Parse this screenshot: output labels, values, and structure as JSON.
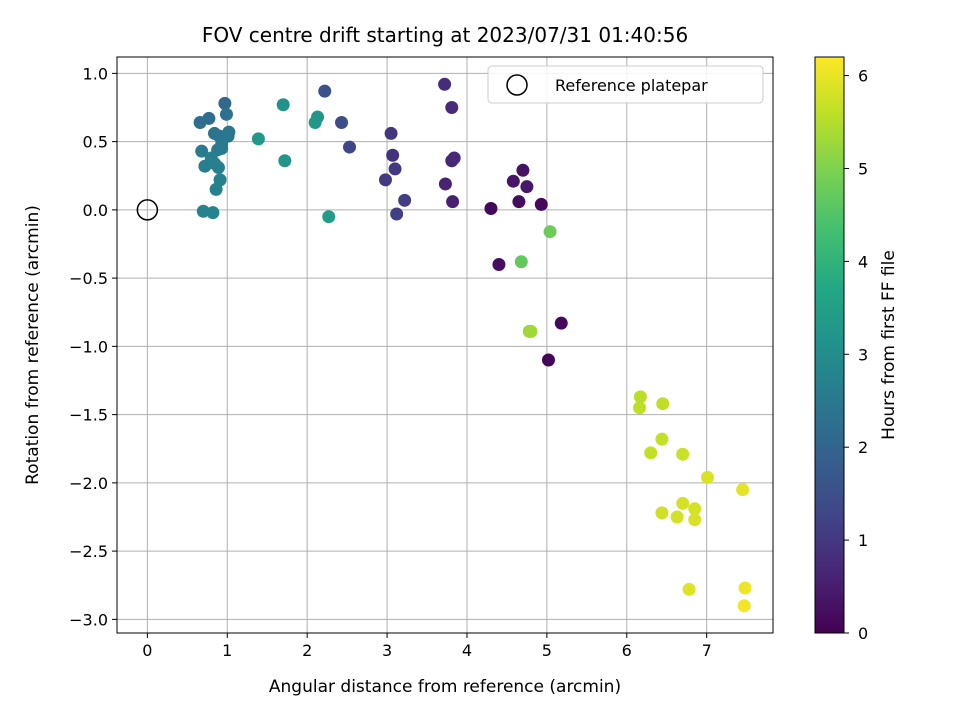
{
  "chart_data": {
    "type": "scatter",
    "title": "FOV centre drift starting at 2023/07/31 01:40:56",
    "xlabel": "Angular distance from reference (arcmin)",
    "ylabel": "Rotation from reference (arcmin)",
    "xlim": [
      -0.38,
      7.83
    ],
    "ylim": [
      -3.1,
      1.12
    ],
    "x_ticks": [
      0,
      1,
      2,
      3,
      4,
      5,
      6,
      7
    ],
    "y_ticks": [
      1.0,
      0.5,
      0.0,
      -0.5,
      -1.0,
      -1.5,
      -2.0,
      -2.5,
      -3.0
    ],
    "x_tick_labels": [
      "0",
      "1",
      "2",
      "3",
      "4",
      "5",
      "6",
      "7"
    ],
    "y_tick_labels": [
      "1.0",
      "0.5",
      "0.0",
      "−0.5",
      "−1.0",
      "−1.5",
      "−2.0",
      "−2.5",
      "−3.0"
    ],
    "grid": true,
    "legend": {
      "placement": "top-right",
      "entries": [
        "Reference platepar"
      ]
    },
    "reference_point": {
      "x": 0.0,
      "y": 0.0,
      "marker": "open-circle"
    },
    "colorbar": {
      "label": "Hours from first FF file",
      "colormap": "viridis",
      "range": [
        0,
        6.2
      ],
      "ticks": [
        0,
        1,
        2,
        3,
        4,
        5,
        6
      ],
      "tick_labels": [
        "0",
        "1",
        "2",
        "3",
        "4",
        "5",
        "6"
      ]
    },
    "points": [
      {
        "x": 4.3,
        "y": 0.01,
        "c": 0.1
      },
      {
        "x": 5.02,
        "y": -1.1,
        "c": 0.05
      },
      {
        "x": 5.18,
        "y": -0.83,
        "c": 0.15
      },
      {
        "x": 4.4,
        "y": -0.4,
        "c": 0.25
      },
      {
        "x": 4.65,
        "y": 0.06,
        "c": 0.2
      },
      {
        "x": 4.7,
        "y": 0.29,
        "c": 0.3
      },
      {
        "x": 4.58,
        "y": 0.21,
        "c": 0.35
      },
      {
        "x": 4.75,
        "y": 0.17,
        "c": 0.4
      },
      {
        "x": 4.93,
        "y": 0.04,
        "c": 0.12
      },
      {
        "x": 3.82,
        "y": 0.06,
        "c": 0.55
      },
      {
        "x": 3.73,
        "y": 0.19,
        "c": 0.6
      },
      {
        "x": 3.81,
        "y": 0.36,
        "c": 0.65
      },
      {
        "x": 3.84,
        "y": 0.38,
        "c": 0.7
      },
      {
        "x": 3.81,
        "y": 0.75,
        "c": 0.75
      },
      {
        "x": 3.72,
        "y": 0.92,
        "c": 0.8
      },
      {
        "x": 3.07,
        "y": 0.4,
        "c": 0.9
      },
      {
        "x": 3.05,
        "y": 0.56,
        "c": 0.95
      },
      {
        "x": 3.1,
        "y": 0.3,
        "c": 1.0
      },
      {
        "x": 2.98,
        "y": 0.22,
        "c": 1.05
      },
      {
        "x": 3.22,
        "y": 0.07,
        "c": 1.1
      },
      {
        "x": 3.12,
        "y": -0.03,
        "c": 1.15
      },
      {
        "x": 2.53,
        "y": 0.46,
        "c": 1.3
      },
      {
        "x": 2.43,
        "y": 0.64,
        "c": 1.45
      },
      {
        "x": 2.22,
        "y": 0.87,
        "c": 1.6
      },
      {
        "x": 0.97,
        "y": 0.78,
        "c": 2.1
      },
      {
        "x": 0.77,
        "y": 0.67,
        "c": 2.2
      },
      {
        "x": 0.66,
        "y": 0.64,
        "c": 2.25
      },
      {
        "x": 0.99,
        "y": 0.7,
        "c": 2.3
      },
      {
        "x": 0.84,
        "y": 0.56,
        "c": 2.35
      },
      {
        "x": 0.9,
        "y": 0.54,
        "c": 2.4
      },
      {
        "x": 1.01,
        "y": 0.54,
        "c": 2.4
      },
      {
        "x": 1.02,
        "y": 0.57,
        "c": 2.45
      },
      {
        "x": 0.93,
        "y": 0.48,
        "c": 2.5
      },
      {
        "x": 0.88,
        "y": 0.44,
        "c": 2.5
      },
      {
        "x": 0.93,
        "y": 0.45,
        "c": 2.55
      },
      {
        "x": 0.68,
        "y": 0.43,
        "c": 2.55
      },
      {
        "x": 0.8,
        "y": 0.38,
        "c": 2.6
      },
      {
        "x": 0.72,
        "y": 0.32,
        "c": 2.6
      },
      {
        "x": 0.84,
        "y": 0.34,
        "c": 2.65
      },
      {
        "x": 0.89,
        "y": 0.31,
        "c": 2.65
      },
      {
        "x": 0.91,
        "y": 0.22,
        "c": 2.7
      },
      {
        "x": 0.86,
        "y": 0.15,
        "c": 2.7
      },
      {
        "x": 0.7,
        "y": -0.01,
        "c": 2.75
      },
      {
        "x": 0.82,
        "y": -0.02,
        "c": 2.75
      },
      {
        "x": 1.7,
        "y": 0.77,
        "c": 3.1
      },
      {
        "x": 2.13,
        "y": 0.68,
        "c": 3.2
      },
      {
        "x": 2.1,
        "y": 0.64,
        "c": 3.25
      },
      {
        "x": 1.39,
        "y": 0.52,
        "c": 3.3
      },
      {
        "x": 1.72,
        "y": 0.36,
        "c": 3.2
      },
      {
        "x": 2.27,
        "y": -0.05,
        "c": 3.4
      },
      {
        "x": 4.68,
        "y": -0.38,
        "c": 4.7
      },
      {
        "x": 5.04,
        "y": -0.16,
        "c": 4.8
      },
      {
        "x": 4.78,
        "y": -0.89,
        "c": 5.3
      },
      {
        "x": 4.8,
        "y": -0.89,
        "c": 5.3
      },
      {
        "x": 6.17,
        "y": -1.37,
        "c": 5.55
      },
      {
        "x": 6.16,
        "y": -1.45,
        "c": 5.6
      },
      {
        "x": 6.45,
        "y": -1.42,
        "c": 5.6
      },
      {
        "x": 6.44,
        "y": -1.68,
        "c": 5.65
      },
      {
        "x": 6.3,
        "y": -1.78,
        "c": 5.65
      },
      {
        "x": 6.7,
        "y": -1.79,
        "c": 5.7
      },
      {
        "x": 7.01,
        "y": -1.96,
        "c": 5.85
      },
      {
        "x": 7.45,
        "y": -2.05,
        "c": 5.95
      },
      {
        "x": 6.7,
        "y": -2.15,
        "c": 5.8
      },
      {
        "x": 6.85,
        "y": -2.19,
        "c": 5.8
      },
      {
        "x": 6.44,
        "y": -2.22,
        "c": 5.75
      },
      {
        "x": 6.63,
        "y": -2.25,
        "c": 5.8
      },
      {
        "x": 6.85,
        "y": -2.27,
        "c": 5.85
      },
      {
        "x": 6.78,
        "y": -2.78,
        "c": 5.9
      },
      {
        "x": 7.48,
        "y": -2.77,
        "c": 6.05
      },
      {
        "x": 7.47,
        "y": -2.9,
        "c": 6.1
      }
    ]
  }
}
